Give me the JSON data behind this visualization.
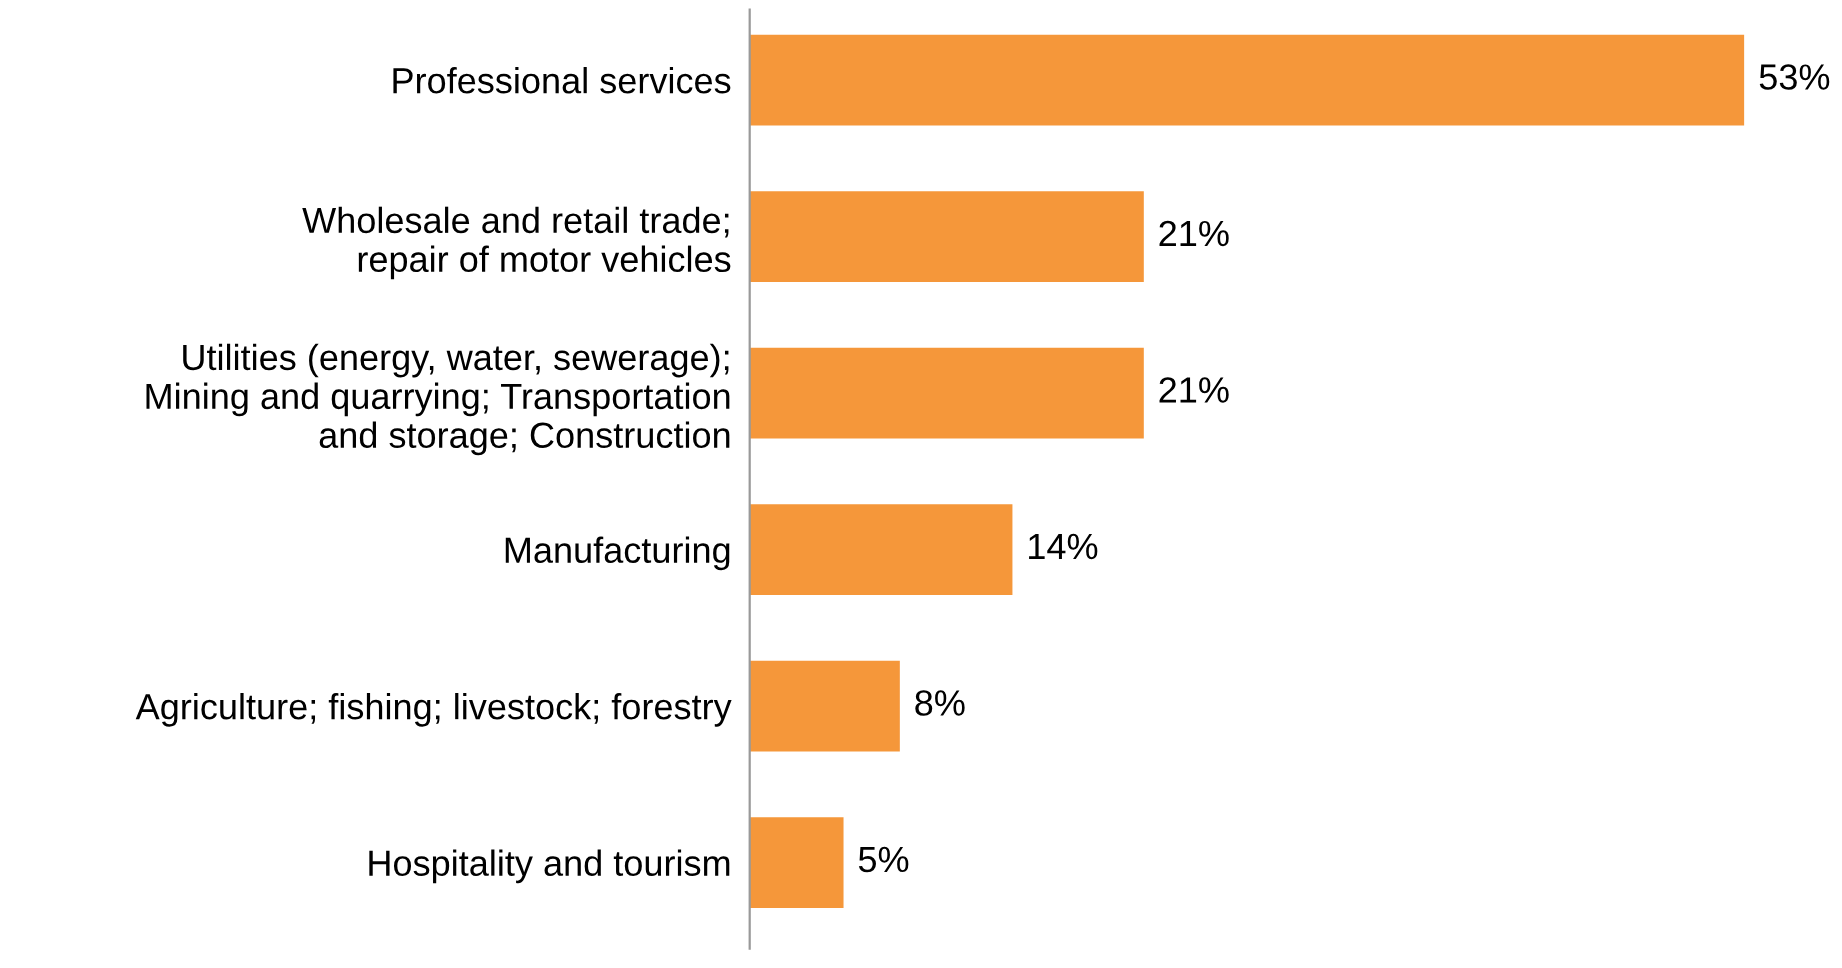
{
  "chart_data": {
    "type": "bar",
    "orientation": "horizontal",
    "categories": [
      "Professional services",
      "Wholesale and retail trade;\nrepair of motor vehicles",
      "Utilities (energy, water, sewerage);\nMining and quarrying; Transportation\nand storage; Construction",
      "Manufacturing",
      "Agriculture; fishing; livestock; forestry",
      "Hospitality and tourism"
    ],
    "values": [
      53,
      21,
      21,
      14,
      8,
      5
    ],
    "value_labels": [
      "53%",
      "21%",
      "21%",
      "14%",
      "8%",
      "5%"
    ],
    "color": "#f5973a",
    "tick_labels": "y",
    "grid": false,
    "legend": false
  }
}
